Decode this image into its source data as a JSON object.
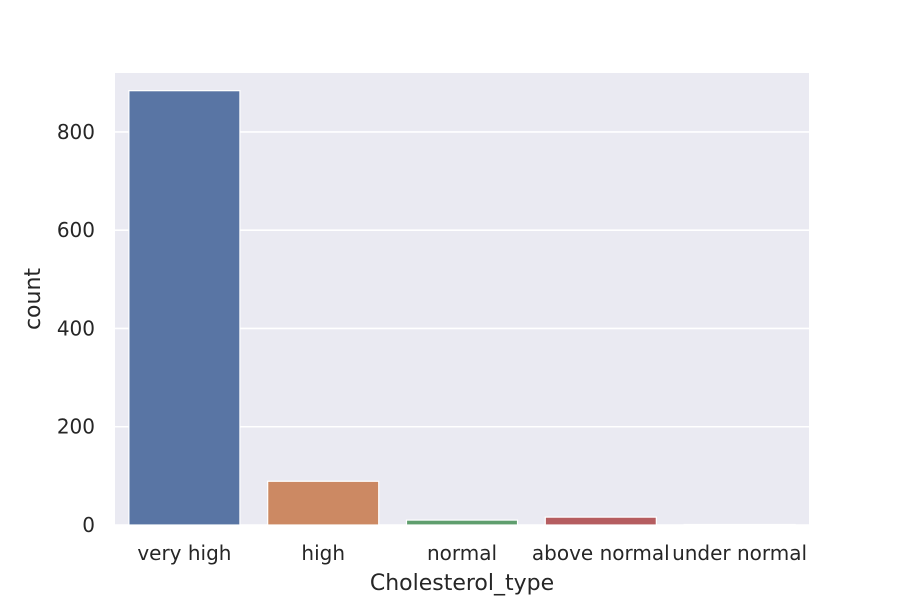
{
  "chart_data": {
    "type": "bar",
    "xlabel": "Cholesterol_type",
    "ylabel": "count",
    "categories": [
      "very high",
      "high",
      "normal",
      "above normal",
      "under normal"
    ],
    "values": [
      884,
      89,
      10,
      16,
      1
    ],
    "colors": [
      "#5975a4",
      "#cc8963",
      "#5f9e6e",
      "#b55d60",
      "#857aab"
    ],
    "ylim": [
      0,
      920
    ],
    "yticks": [
      0,
      200,
      400,
      600,
      800
    ],
    "ytick_labels": [
      "0",
      "200",
      "400",
      "600",
      "800"
    ],
    "grid": true,
    "legend": "none",
    "background_color": "#eaeaf2",
    "grid_color": "#ffffff"
  }
}
